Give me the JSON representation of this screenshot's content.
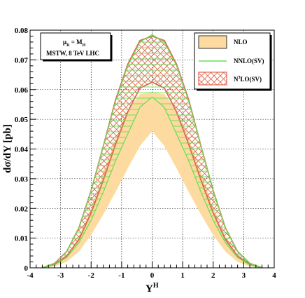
{
  "chart_data": {
    "type": "area",
    "xlabel": "Y",
    "xlabel_sup": "H",
    "ylabel": "dσ/dY [pb]",
    "xlim": [
      -4,
      4
    ],
    "ylim": [
      0,
      0.08
    ],
    "x_ticks": [
      "-4",
      "-3",
      "-2",
      "-1",
      "0",
      "1",
      "2",
      "3",
      "4"
    ],
    "y_ticks": [
      "0",
      "0.01",
      "0.02",
      "0.03",
      "0.04",
      "0.05",
      "0.06",
      "0.07",
      "0.08"
    ],
    "grid": true,
    "legend_position": "top-right",
    "info_box": {
      "line1_main": "μ",
      "line1_sub1": "R",
      "line1_mid": " = M",
      "line1_sub2": "H",
      "line2": "MSTW, 8 TeV LHC"
    },
    "x": [
      -3.6,
      -3.2,
      -2.8,
      -2.4,
      -2.0,
      -1.6,
      -1.2,
      -0.8,
      -0.4,
      0.0,
      0.4,
      0.8,
      1.2,
      1.6,
      2.0,
      2.4,
      2.8,
      3.2,
      3.6
    ],
    "series": [
      {
        "name": "NLO",
        "style": "band",
        "color": "#fddba0",
        "lower": [
          0.0,
          0.0005,
          0.002,
          0.0055,
          0.011,
          0.018,
          0.0255,
          0.0335,
          0.041,
          0.046,
          0.041,
          0.0335,
          0.0255,
          0.018,
          0.011,
          0.0055,
          0.002,
          0.0005,
          0.0
        ],
        "upper": [
          0.0,
          0.001,
          0.004,
          0.0105,
          0.02,
          0.032,
          0.0435,
          0.053,
          0.0585,
          0.059,
          0.0585,
          0.053,
          0.0435,
          0.032,
          0.02,
          0.0105,
          0.004,
          0.001,
          0.0
        ]
      },
      {
        "name": "NNLO(SV)",
        "style": "hatch-horizontal",
        "color": "#66dd55",
        "lower": [
          0.0,
          0.001,
          0.0035,
          0.0085,
          0.016,
          0.0255,
          0.036,
          0.045,
          0.054,
          0.0575,
          0.054,
          0.045,
          0.036,
          0.0255,
          0.016,
          0.0085,
          0.0035,
          0.001,
          0.0
        ],
        "upper": [
          0.0,
          0.0015,
          0.0055,
          0.0135,
          0.026,
          0.041,
          0.056,
          0.068,
          0.076,
          0.0785,
          0.076,
          0.068,
          0.056,
          0.041,
          0.026,
          0.0135,
          0.0055,
          0.0015,
          0.0
        ]
      },
      {
        "name": "N3LO(SV)",
        "label_main": "N",
        "label_sup": "3",
        "label_rest": "LO(SV)",
        "style": "crosshatch",
        "color": "#e06650",
        "lower": [
          0.0,
          0.0012,
          0.004,
          0.0095,
          0.0185,
          0.0295,
          0.0415,
          0.0525,
          0.0605,
          0.0625,
          0.0605,
          0.0525,
          0.0415,
          0.0295,
          0.0185,
          0.0095,
          0.004,
          0.0012,
          0.0
        ],
        "upper": [
          0.0,
          0.0015,
          0.0055,
          0.0135,
          0.026,
          0.041,
          0.0565,
          0.0685,
          0.0765,
          0.078,
          0.0765,
          0.0685,
          0.0565,
          0.041,
          0.026,
          0.0135,
          0.0055,
          0.0015,
          0.0
        ]
      }
    ]
  }
}
